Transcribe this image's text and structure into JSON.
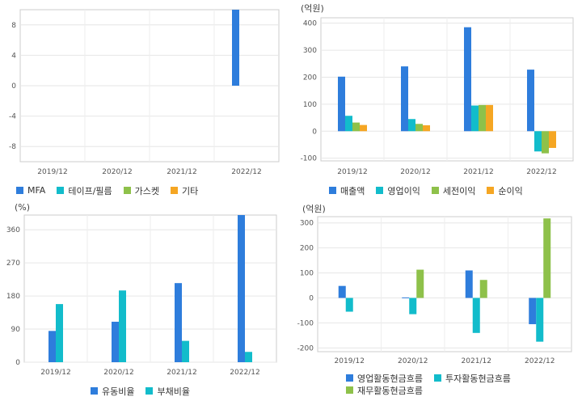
{
  "colors": {
    "blue": "#2e7ddc",
    "cyan": "#12bccb",
    "green": "#8ec14a",
    "orange": "#f5a623"
  },
  "chart_data": [
    {
      "type": "bar",
      "unit": "",
      "categories": [
        "2019/12",
        "2020/12",
        "2021/12",
        "2022/12"
      ],
      "ylim": [
        -10,
        10
      ],
      "yticks": [
        8,
        4,
        0,
        -4,
        -8
      ],
      "grid": true,
      "legend": "bottom-left",
      "legend_rows": [
        [
          0,
          1,
          2,
          3
        ]
      ],
      "series": [
        {
          "name": "MFA",
          "color": "blue",
          "values": [
            null,
            null,
            null,
            10
          ]
        },
        {
          "name": "테이프/필름",
          "color": "cyan",
          "values": [
            null,
            null,
            null,
            null
          ]
        },
        {
          "name": "가스켓",
          "color": "green",
          "values": [
            null,
            null,
            null,
            null
          ]
        },
        {
          "name": "기타",
          "color": "orange",
          "values": [
            null,
            null,
            null,
            null
          ]
        }
      ]
    },
    {
      "type": "bar",
      "unit": "(억원)",
      "categories": [
        "2019/12",
        "2020/12",
        "2021/12",
        "2022/12"
      ],
      "ylim": [
        -110,
        420
      ],
      "yticks": [
        400,
        300,
        200,
        100,
        0,
        -100
      ],
      "grid": true,
      "legend": "bottom-left",
      "legend_rows": [
        [
          0,
          1,
          2,
          3
        ]
      ],
      "series": [
        {
          "name": "매출액",
          "color": "blue",
          "values": [
            202,
            240,
            385,
            228
          ]
        },
        {
          "name": "영업이익",
          "color": "cyan",
          "values": [
            57,
            45,
            95,
            -75
          ]
        },
        {
          "name": "세전이익",
          "color": "green",
          "values": [
            32,
            27,
            97,
            -82
          ]
        },
        {
          "name": "순이익",
          "color": "orange",
          "values": [
            23,
            22,
            97,
            -62
          ]
        }
      ]
    },
    {
      "type": "bar",
      "unit": "(%)",
      "categories": [
        "2019/12",
        "2020/12",
        "2021/12",
        "2022/12"
      ],
      "ylim": [
        0,
        400
      ],
      "yticks": [
        360,
        270,
        180,
        90,
        0
      ],
      "grid": true,
      "legend": "bottom-center",
      "legend_rows": [
        [
          0,
          1
        ]
      ],
      "series": [
        {
          "name": "유동비율",
          "color": "blue",
          "values": [
            85,
            110,
            215,
            400
          ]
        },
        {
          "name": "부채비율",
          "color": "cyan",
          "values": [
            158,
            195,
            58,
            28
          ]
        }
      ]
    },
    {
      "type": "bar",
      "unit": "(억원)",
      "categories": [
        "2019/12",
        "2020/12",
        "2021/12",
        "2022/12"
      ],
      "ylim": [
        -215,
        325
      ],
      "yticks": [
        300,
        200,
        100,
        0,
        -100,
        -200
      ],
      "grid": true,
      "legend": "bottom-center",
      "legend_rows": [
        [
          0,
          1
        ],
        [
          2
        ]
      ],
      "series": [
        {
          "name": "영업활동현금흐름",
          "color": "blue",
          "values": [
            48,
            2,
            110,
            -105
          ]
        },
        {
          "name": "투자활동현금흐름",
          "color": "cyan",
          "values": [
            -55,
            -65,
            -140,
            -175
          ]
        },
        {
          "name": "재무활동현금흐름",
          "color": "green",
          "values": [
            null,
            113,
            72,
            318
          ]
        }
      ]
    }
  ]
}
